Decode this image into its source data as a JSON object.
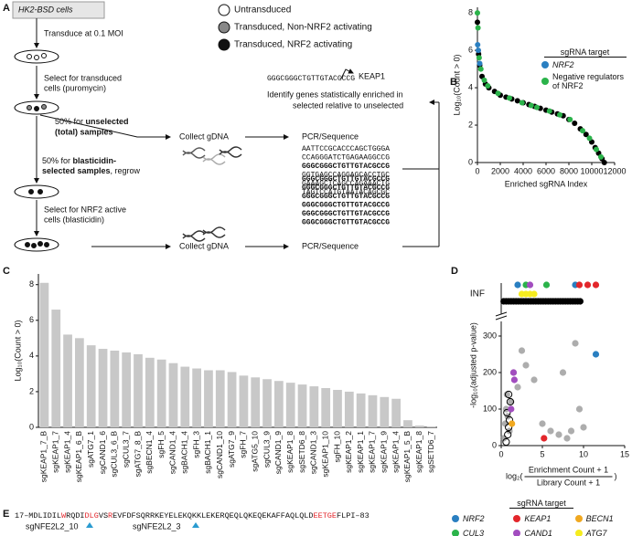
{
  "diagram": {
    "panel": "A",
    "start": "HK2-BSD cells",
    "transduce": "Transduce at 0.1 MOI",
    "select_transduced": [
      "Select for transduced",
      "cells (puromycin)"
    ],
    "unselected": [
      "50% for ",
      "unselected",
      "(total) samples"
    ],
    "selected": [
      "50% for ",
      "blasticidin-",
      "selected samples",
      ", regrow"
    ],
    "select_active": [
      "Select for NRF2 active",
      "cells (blasticidin)"
    ],
    "legend": [
      "Untransduced",
      "Transduced, Non-NRF2 activating",
      "Transduced, NRF2 activating"
    ],
    "guide": "GGGCGGGCTGTTGTACGCCG",
    "gene": "KEAP1",
    "identify": [
      "Identify genes statistically enriched in",
      "selected relative to unselected"
    ],
    "collect": [
      "Collect gDNA",
      "Collect gDNA"
    ],
    "pcr": [
      "PCR/Sequence",
      "PCR/Sequence"
    ],
    "reads_unselected": [
      "AATTCCGCACCCAGCTGGGA",
      "CCAGGGATCTGAGAAGGCCG",
      "GGGCGGGCTGTTGTACGCCG",
      "GGTGAGCCAGGAGCACCTGC",
      "GAAAGCTCAGCCAGAAACTG",
      "TAGTCCATGTAATACAGCGC"
    ],
    "reads_selected": [
      "GGGCGGGCTGTTGTACGCCG",
      "GGGCGGGCTGTTGTACGCCG",
      "GGGCGGGCTGTTGTACGCCG",
      "GGGCGGGCTGTTGTACGCCG",
      "GGGCGGGCTGTTGTACGCCG",
      "GGGCGGGCTGTTGTACGCCG"
    ]
  },
  "chart_data": [
    {
      "type": "scatter",
      "panel": "B",
      "xlabel": "Enriched sgRNA Index",
      "ylabel": "Log₁₀(Count > 0)",
      "xlim": [
        0,
        12000
      ],
      "ylim": [
        0,
        8.3
      ],
      "xticks": [
        0,
        2000,
        4000,
        6000,
        8000,
        10000,
        12000
      ],
      "yticks": [
        0,
        2,
        4,
        6,
        8
      ],
      "legend": "upper right",
      "legend_title": "sgRNA target",
      "series": [
        {
          "color": "#000000",
          "x": [
            0,
            100,
            200,
            400,
            700,
            1000,
            1500,
            2000,
            2500,
            3000,
            3500,
            4000,
            4500,
            5000,
            5500,
            6000,
            6500,
            7000,
            7500,
            8000,
            8500,
            9000,
            9500,
            10000,
            10300,
            10600,
            10900,
            11100
          ],
          "values": [
            7.5,
            5.8,
            5.2,
            4.6,
            4.2,
            4.0,
            3.8,
            3.6,
            3.5,
            3.4,
            3.3,
            3.2,
            3.1,
            3.0,
            2.9,
            2.8,
            2.7,
            2.6,
            2.5,
            2.3,
            2.1,
            1.8,
            1.5,
            1.1,
            0.8,
            0.5,
            0.2,
            0
          ]
        },
        {
          "name": "NRF2",
          "color": "#2a7fc1",
          "x": [
            20,
            80,
            200
          ],
          "values": [
            6.3,
            6.0,
            5.3
          ]
        },
        {
          "name": "Negative regulators of NRF2",
          "color": "#2bb34a",
          "x": [
            0,
            50,
            150,
            300,
            600,
            900,
            1800,
            2800,
            3900,
            4700,
            5200,
            6300,
            7200,
            8100,
            9200,
            9800,
            10400,
            10800
          ],
          "values": [
            8.0,
            7.2,
            5.6,
            5.0,
            4.4,
            4.1,
            3.7,
            3.45,
            3.2,
            3.05,
            2.95,
            2.75,
            2.55,
            2.3,
            1.7,
            1.3,
            0.7,
            0.3
          ]
        }
      ]
    },
    {
      "type": "bar",
      "panel": "C",
      "ylabel": "Log₁₀(Count > 0)",
      "color": "#c8c8c8",
      "ylim": [
        0,
        8.6
      ],
      "yticks": [
        0,
        2,
        4,
        6,
        8
      ],
      "categories": [
        "sgKEAP1_7_B",
        "sgKEAP1_7",
        "sgKEAP1_4",
        "sgKEAP1_6_B",
        "sgATG7_1",
        "sgCAND1_6",
        "sgCUL3_6_B",
        "sgCUL3_7",
        "sgATG7_8_B",
        "sgBECN1_4",
        "sgFH_5",
        "sgCAND1_4",
        "sgBACH1_4",
        "sgFH_3",
        "sgBACH1_1",
        "sgCAND1_10",
        "sgATG7_9",
        "sgFH_7",
        "sgATG5_10",
        "sgCUL3_9",
        "sgCAND1_9",
        "sgKEAP1_8",
        "sgSETD6_8",
        "sgCAND1_3",
        "sgKEAP1_10",
        "sgFH_10",
        "sgKEAP1_2",
        "sgKEAP1_1",
        "sgKEAP1_7",
        "sgKEAP1_9",
        "sgKEAP1_4",
        "sgKEAP1_5_B",
        "sgKEAP1_8",
        "sgSETD6_7"
      ],
      "values": [
        8.1,
        6.6,
        5.2,
        5.0,
        4.6,
        4.4,
        4.3,
        4.2,
        4.1,
        3.9,
        3.8,
        3.6,
        3.4,
        3.3,
        3.2,
        3.2,
        3.1,
        2.9,
        2.8,
        2.7,
        2.6,
        2.5,
        2.4,
        2.3,
        2.2,
        2.1,
        2.0,
        1.9,
        1.8,
        1.7,
        1.6,
        0.4,
        0.1,
        0.05
      ]
    },
    {
      "type": "scatter",
      "panel": "D",
      "ylabel": "-log₁₀(adjusted p-value)",
      "xlabel": {
        "prefix": "log₂(",
        "numerator": "Enrichment Count + 1",
        "denominator": "Library Count + 1",
        "suffix": ")"
      },
      "inf_label": "INF",
      "xlim": [
        0,
        15
      ],
      "ylim": [
        0,
        340
      ],
      "xticks": [
        0,
        5,
        10,
        15
      ],
      "yticks": [
        0,
        100,
        200,
        300
      ],
      "legend": "below",
      "legend_title": "sgRNA target",
      "series": [
        {
          "color": "#8a8a8a",
          "x": [
            0.3,
            0.5,
            0.6,
            0.7,
            0.8,
            1.0,
            1.2,
            1.5,
            2,
            2.5,
            3,
            4,
            5,
            6,
            7,
            7.5,
            8,
            8.5,
            9,
            9.5,
            10
          ],
          "values": [
            20,
            60,
            100,
            140,
            80,
            40,
            120,
            200,
            160,
            260,
            220,
            180,
            60,
            40,
            30,
            200,
            20,
            40,
            280,
            100,
            50
          ],
          "inf_x": []
        },
        {
          "color": "#000000",
          "marker": "open",
          "x": [
            0.6,
            0.8,
            0.9,
            1.0,
            0.7,
            1.1,
            0.9
          ],
          "values": [
            10,
            30,
            50,
            70,
            90,
            120,
            140
          ],
          "inf_x": [
            0.3,
            0.6,
            0.9,
            1.2,
            1.5,
            1.8,
            2.1,
            2.4,
            2.7,
            3.0,
            3.3,
            3.6,
            3.9,
            4.2,
            4.5,
            4.8,
            5.1,
            5.4,
            5.7,
            6.0,
            6.3,
            6.6,
            6.9,
            7.2,
            7.5,
            7.8,
            8.1,
            8.4,
            8.7,
            9.0,
            9.3,
            9.6
          ]
        },
        {
          "name": "NRF2",
          "color": "#2a7fc1",
          "x": [
            11.5
          ],
          "values": [
            250
          ],
          "inf_x": [
            2,
            9
          ]
        },
        {
          "name": "KEAP1",
          "color": "#e3262b",
          "x": [
            5.2
          ],
          "values": [
            20
          ],
          "inf_x": [
            9.5,
            10.5,
            11.5
          ]
        },
        {
          "name": "BECN1",
          "color": "#f0a820",
          "x": [
            1.3
          ],
          "values": [
            60
          ],
          "inf_x": []
        },
        {
          "name": "CUL3",
          "color": "#2bb34a",
          "x": [],
          "values": [],
          "inf_x": [
            3,
            5.5
          ]
        },
        {
          "name": "CAND1",
          "color": "#a24dbf",
          "x": [
            1.5,
            1.6,
            1.2
          ],
          "values": [
            200,
            180,
            100
          ],
          "inf_x": [
            3.5
          ]
        },
        {
          "name": "ATG7",
          "color": "#f5ec1f",
          "x": [],
          "values": [],
          "inf_x": [
            2.5,
            3,
            3.5,
            4
          ]
        }
      ]
    }
  ],
  "sequence": {
    "panel": "E",
    "parts": [
      "17–MDLIDIL",
      "W",
      "RQDI",
      "DLG",
      "VS",
      "R",
      "EVFDFSQRRKEYELEKQKKLEKERQEQLQKEQEKAFFAQLQLD",
      "EETGE",
      "FLPI–83"
    ],
    "guides": [
      "sgNFE2L2_10",
      "sgNFE2L2_3"
    ]
  }
}
